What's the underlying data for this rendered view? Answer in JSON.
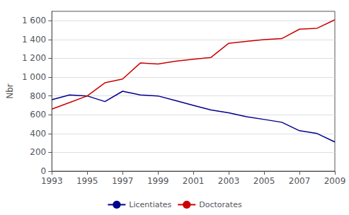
{
  "chart_data": {
    "type": "line",
    "ylabel": "Nbr",
    "x": [
      1993,
      1994,
      1995,
      1996,
      1997,
      1998,
      1999,
      2000,
      2001,
      2002,
      2003,
      2004,
      2005,
      2006,
      2007,
      2008,
      2009
    ],
    "series": [
      {
        "name": "Licentiates",
        "color": "#00008B",
        "values": [
          760,
          810,
          800,
          740,
          850,
          810,
          800,
          750,
          700,
          650,
          620,
          580,
          550,
          520,
          430,
          400,
          310
        ]
      },
      {
        "name": "Doctorates",
        "color": "#CC0000",
        "values": [
          660,
          730,
          800,
          940,
          980,
          1150,
          1140,
          1170,
          1190,
          1210,
          1360,
          1380,
          1400,
          1410,
          1510,
          1520,
          1610
        ]
      }
    ],
    "xlim": [
      1993,
      2009
    ],
    "xticks": [
      1993,
      1995,
      1997,
      1999,
      2001,
      2003,
      2005,
      2007,
      2009
    ],
    "ylim": [
      0,
      1700
    ],
    "yticks": [
      0,
      200,
      400,
      600,
      800,
      {
        "value": 1000,
        "label": "1 000"
      },
      {
        "value": 1200,
        "label": "1 200"
      },
      {
        "value": 1400,
        "label": "1 400"
      },
      {
        "value": 1600,
        "label": "1 600"
      }
    ],
    "grid": true,
    "legend": "bottom"
  }
}
